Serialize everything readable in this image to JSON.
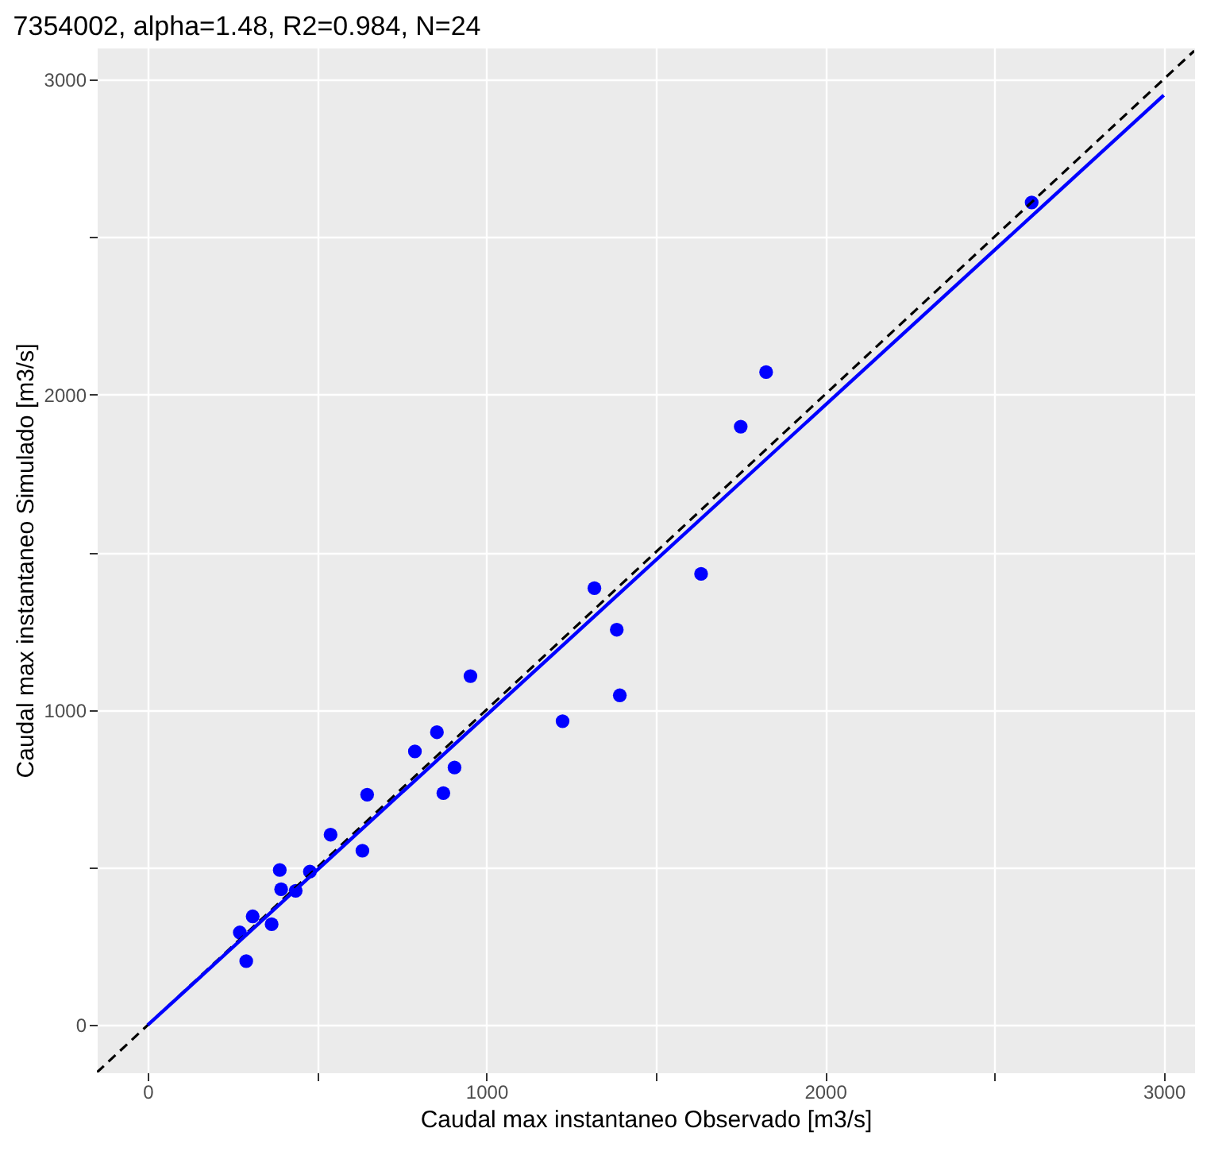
{
  "chart_data": {
    "type": "scatter",
    "title": "7354002,  alpha=1.48,  R2=0.984,  N=24",
    "xlabel": "Caudal max instantaneo Observado [m3/s]",
    "ylabel": "Caudal max instantaneo Simulado [m3/s]",
    "series": [
      {
        "color": "#0000ff",
        "marker": "circle",
        "x": [
          272,
          291,
          310,
          366,
          390,
          394,
          437,
          479,
          540,
          648,
          634,
          789,
          854,
          873,
          906,
          953,
          1225,
          1319,
          1385,
          1394,
          1634,
          1751,
          1826,
          2610
        ],
        "values": [
          294,
          203,
          345,
          320,
          492,
          431,
          426,
          487,
          604,
          731,
          553,
          868,
          929,
          736,
          817,
          1107,
          964,
          1386,
          1254,
          1046,
          1431,
          1898,
          2071,
          2609
        ]
      },
      {
        "type": "line",
        "color": "#000000",
        "line_style": "dashed",
        "x": [
          -150,
          3090
        ],
        "values": [
          -150,
          3090
        ]
      },
      {
        "type": "line",
        "color": "#0000ff",
        "line_style": "solid",
        "x": [
          0,
          3000
        ],
        "values": [
          0,
          2949
        ]
      }
    ],
    "xlim": [
      -150,
      3090
    ],
    "ylim": [
      -150,
      3100
    ],
    "xticks": [
      0,
      {
        "value": 500,
        "label": null
      },
      1000,
      {
        "value": 1500,
        "label": null
      },
      2000,
      {
        "value": 2500,
        "label": null
      },
      3000
    ],
    "yticks": [
      0,
      {
        "value": 500,
        "label": null
      },
      1000,
      {
        "value": 1500,
        "label": null
      },
      2000,
      {
        "value": 2500,
        "label": null
      },
      3000
    ],
    "grid": true
  }
}
